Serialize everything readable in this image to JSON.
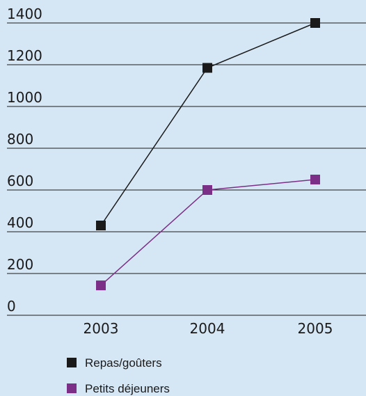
{
  "chart_data": {
    "type": "line",
    "title": "",
    "xlabel": "",
    "ylabel": "",
    "categories": [
      "2003",
      "2004",
      "2005"
    ],
    "ylim": [
      0,
      1400
    ],
    "yticks": [
      0,
      200,
      400,
      600,
      800,
      1000,
      1200,
      1400
    ],
    "grid": "horizontal",
    "legend_position": "bottom-left",
    "series": [
      {
        "name": "Repas/goûters",
        "values": [
          430,
          1185,
          1400
        ],
        "color": "#1a1a1a"
      },
      {
        "name": "Petits déjeuners",
        "values": [
          143,
          600,
          650
        ],
        "color": "#7b2f86"
      }
    ]
  }
}
